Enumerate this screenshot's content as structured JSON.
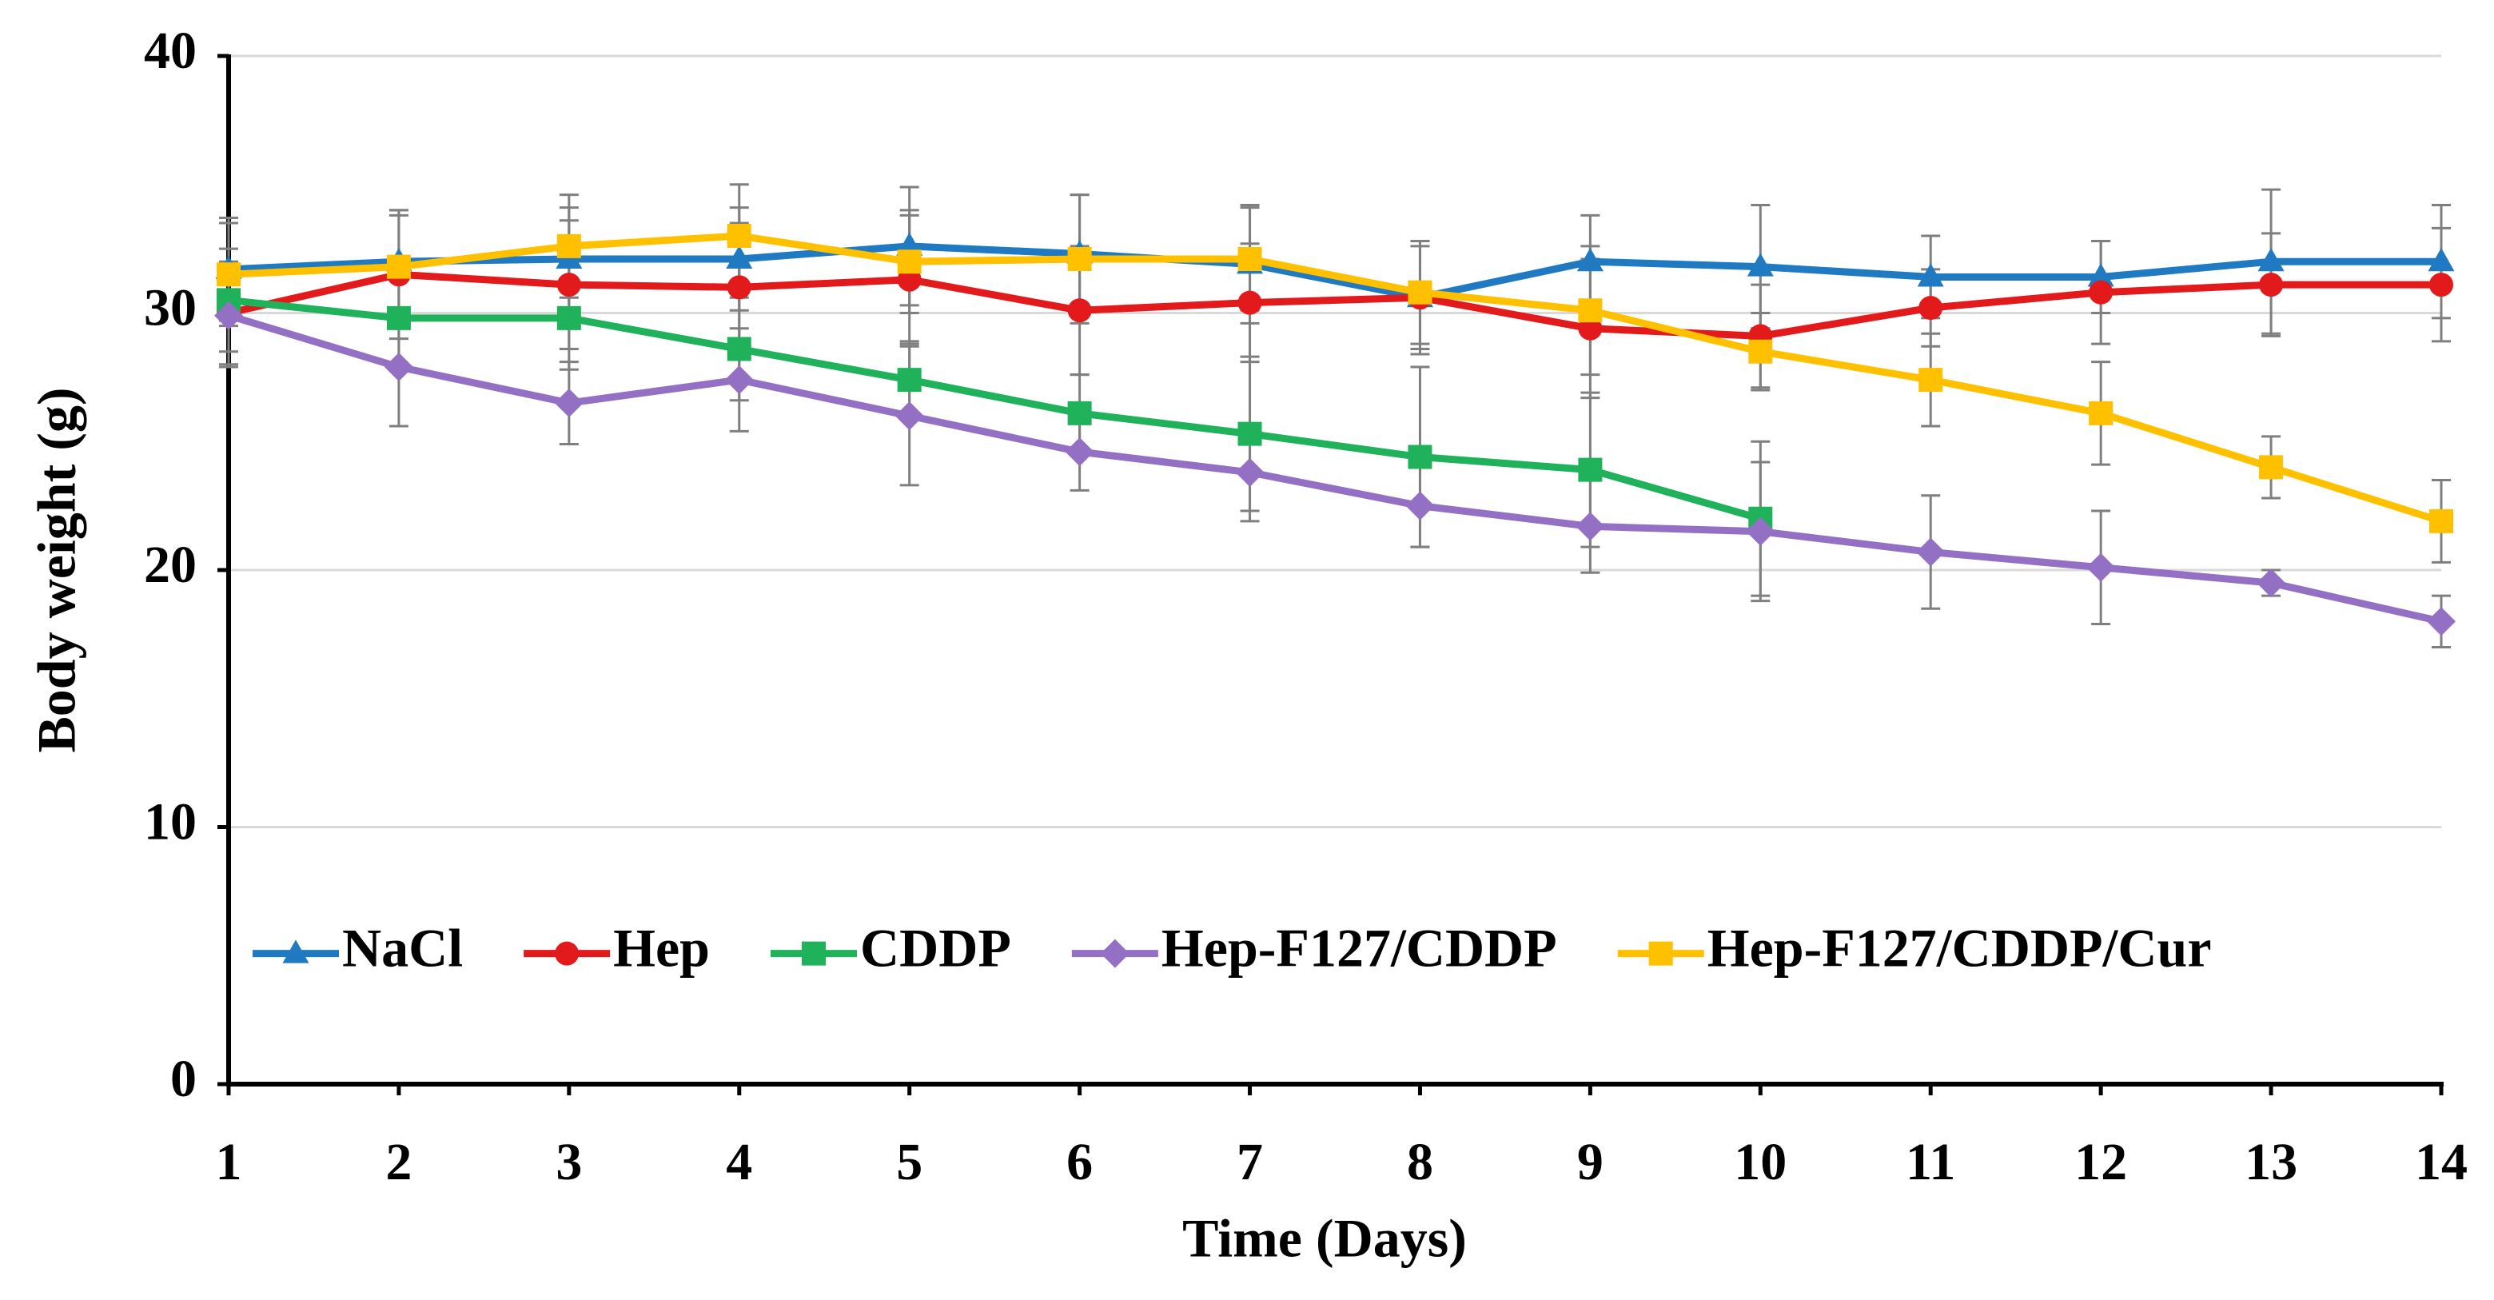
{
  "chart_data": {
    "type": "line",
    "xlabel": "Time (Days)",
    "ylabel": "Body weight (g)",
    "x": [
      1,
      2,
      3,
      4,
      5,
      6,
      7,
      8,
      9,
      10,
      11,
      12,
      13,
      14
    ],
    "xlim": [
      1,
      14
    ],
    "xticks": [
      1,
      2,
      3,
      4,
      5,
      6,
      7,
      8,
      9,
      10,
      11,
      12,
      13,
      14
    ],
    "ylim": [
      0,
      40
    ],
    "yticks": [
      0,
      10,
      20,
      30,
      40
    ],
    "grid": true,
    "legend": "lower left",
    "series": [
      {
        "name": "NaCl",
        "color": "#1f7ac2",
        "marker": "triangle",
        "values": [
          31.7,
          32.0,
          32.1,
          32.1,
          32.6,
          32.3,
          31.9,
          30.6,
          32.0,
          31.8,
          31.4,
          31.4,
          32.0,
          32.0
        ],
        "errors": [
          2.0,
          2.0,
          2.0,
          2.0,
          2.3,
          2.3,
          2.3,
          2.0,
          1.8,
          2.4,
          1.6,
          1.4,
          2.8,
          2.2
        ]
      },
      {
        "name": "Hep",
        "color": "#e31a1c",
        "marker": "circle",
        "values": [
          30.0,
          31.5,
          31.1,
          31.0,
          31.3,
          30.1,
          30.4,
          30.6,
          29.4,
          29.1,
          30.2,
          30.8,
          31.1,
          31.1
        ],
        "errors": [
          2.0,
          2.5,
          2.5,
          2.5,
          2.5,
          2.5,
          2.3,
          2.2,
          2.7,
          2.0,
          1.5,
          2.0,
          2.0,
          2.2
        ]
      },
      {
        "name": "CDDP",
        "color": "#1fb25a",
        "marker": "square",
        "values": [
          30.5,
          29.8,
          29.8,
          28.6,
          27.4,
          26.1,
          25.3,
          24.4,
          23.9,
          22.0,
          null,
          null,
          null,
          null
        ],
        "errors": [
          2.0,
          2.0,
          2.0,
          2.0,
          1.5,
          1.5,
          3.0,
          3.5,
          3.0,
          3.0,
          null,
          null,
          null,
          null
        ]
      },
      {
        "name": "Hep-F127/CDDP",
        "color": "#9370c4",
        "marker": "diamond",
        "values": [
          29.9,
          27.9,
          26.5,
          27.4,
          26.0,
          24.6,
          23.8,
          22.5,
          21.7,
          21.5,
          20.7,
          20.1,
          19.5,
          18.0
        ],
        "errors": [
          2.0,
          2.3,
          1.6,
          2.0,
          2.7,
          1.5,
          1.9,
          1.6,
          1.8,
          2.7,
          2.2,
          2.2,
          0.5,
          1.0
        ]
      },
      {
        "name": "Hep-F127/CDDP/Cur",
        "color": "#ffc000",
        "marker": "square",
        "values": [
          31.5,
          31.8,
          32.6,
          33.0,
          32.0,
          32.1,
          32.1,
          30.8,
          30.1,
          28.5,
          27.4,
          26.1,
          24.0,
          21.9
        ],
        "errors": [
          2.0,
          2.0,
          2.0,
          2.0,
          2.0,
          2.5,
          2.0,
          2.0,
          2.5,
          1.5,
          1.8,
          2.0,
          1.2,
          1.6
        ]
      }
    ]
  }
}
